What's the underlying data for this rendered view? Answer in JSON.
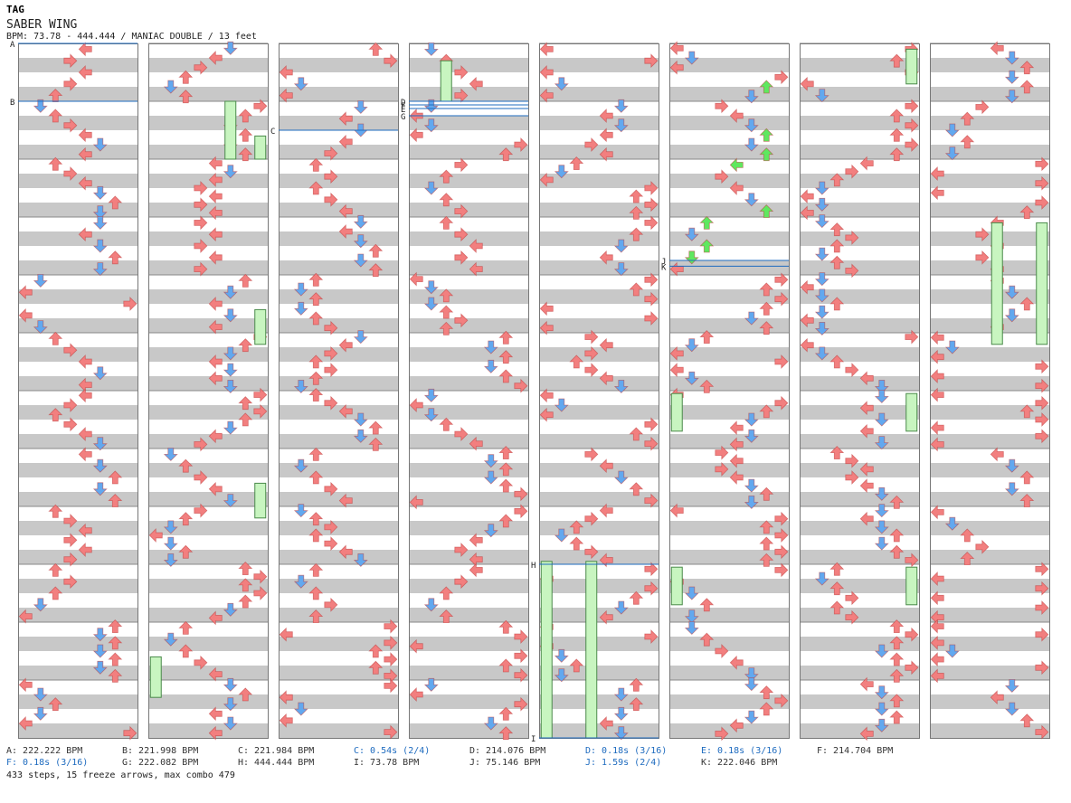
{
  "header": {
    "tag": "TAG",
    "song_title": "SABER WING",
    "info": "BPM: 73.78 - 444.444 / MANIAC DOUBLE / 13 feet"
  },
  "chart": {
    "columns": 8,
    "measures_per_column": 12,
    "markers": [
      {
        "label": "A",
        "column": 0,
        "measure": 0.0
      },
      {
        "label": "B",
        "column": 0,
        "measure": 1.0
      },
      {
        "label": "C",
        "column": 2,
        "measure": 1.5
      },
      {
        "label": "D",
        "column": 3,
        "measure": 1.0
      },
      {
        "label": "E",
        "column": 3,
        "measure": 1.125
      },
      {
        "label": "F",
        "column": 3,
        "measure": 1.0625
      },
      {
        "label": "G",
        "column": 3,
        "measure": 1.25
      },
      {
        "label": "H",
        "column": 4,
        "measure": 9.0
      },
      {
        "label": "I",
        "column": 4,
        "measure": 12.0
      },
      {
        "label": "J",
        "column": 5,
        "measure": 3.75
      },
      {
        "label": "K",
        "column": 5,
        "measure": 3.85
      }
    ],
    "colors": {
      "red": "#f27f7f",
      "blue": "#62a8ef",
      "green": "#5fe85f",
      "freeze": "#c8f5c0",
      "stripe": "#c8c8c8"
    }
  },
  "footer": {
    "rows": [
      [
        {
          "text": "A: 222.222 BPM",
          "stop": false
        },
        {
          "text": "B: 221.998 BPM",
          "stop": false
        },
        {
          "text": "C: 221.984 BPM",
          "stop": false
        },
        {
          "text": "C: 0.54s (2/4)",
          "stop": true
        },
        {
          "text": "D: 214.076 BPM",
          "stop": false
        },
        {
          "text": "D: 0.18s (3/16)",
          "stop": true
        },
        {
          "text": "E: 0.18s (3/16)",
          "stop": true
        },
        {
          "text": "F: 214.704 BPM",
          "stop": false
        }
      ],
      [
        {
          "text": "F: 0.18s (3/16)",
          "stop": true
        },
        {
          "text": "G: 222.082 BPM",
          "stop": false
        },
        {
          "text": "H: 444.444 BPM",
          "stop": false
        },
        {
          "text": "I: 73.78 BPM",
          "stop": false
        },
        {
          "text": "J: 75.146 BPM",
          "stop": false
        },
        {
          "text": "J: 1.59s (2/4)",
          "stop": true
        },
        {
          "text": "K: 222.046 BPM",
          "stop": false
        }
      ]
    ],
    "summary": "433 steps, 15 freeze arrows, max combo 479"
  }
}
